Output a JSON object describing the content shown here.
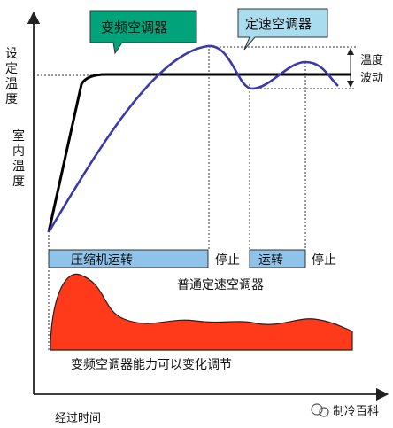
{
  "callouts": {
    "inverter": "变频空调器",
    "fixed_speed": "定速空调器"
  },
  "axes": {
    "y_label_top": [
      "设",
      "定",
      "温",
      "度"
    ],
    "y_label_room": [
      "室",
      "内",
      "温",
      "度"
    ],
    "x_label": "经过时间"
  },
  "fluctuation_label": [
    "温度",
    "波动"
  ],
  "compressor_bar": {
    "run_label": "压缩机运转",
    "stop_label_1": "停止",
    "run_label_2": "运转",
    "stop_label_2": "停止"
  },
  "fixed_speed_caption": "普通定速空调器",
  "capacity_caption": "变频空调器能力可以变化调节",
  "watermark": "制冷百科",
  "colors": {
    "inverter_curve": "#000000",
    "fixed_curve": "#3a3aa8",
    "callout_green": "#00a37a",
    "callout_blue": "#a9dcef",
    "bar_fill": "#8fc3ea",
    "capacity_fill": "#ff3a1a"
  }
}
